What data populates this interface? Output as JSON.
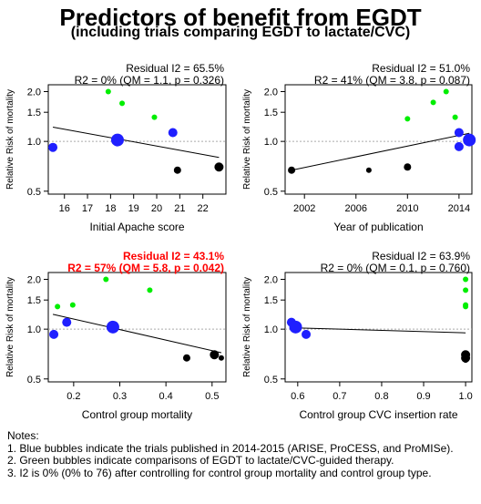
{
  "title": "Predictors of benefit from EGDT",
  "subtitle": "(including trials comparing EGDT to lactate/CVC)",
  "colors": {
    "blue_bubble": "#1f1fff",
    "green_bubble": "#00ee00",
    "black_bubble": "#000000",
    "highlight_text": "#ff0000",
    "reference_line": "#aaaaaa"
  },
  "chart_data": [
    {
      "type": "scatter",
      "panel": "top-left",
      "xlabel": "Initial Apache score",
      "ylabel": "Relative Risk of mortality",
      "stat_line1": "Residual I2 = 65.5%",
      "stat_line2": "R2 = 0% (QM = 1.1, p = 0.326)",
      "highlight": false,
      "y_scale": "log",
      "xlim": [
        15.3,
        23.0
      ],
      "ylim": [
        0.48,
        2.2
      ],
      "xticks": [
        "16",
        "17",
        "18",
        "19",
        "20",
        "21",
        "22"
      ],
      "xtick_values": [
        16,
        17,
        18,
        19,
        20,
        21,
        22
      ],
      "yticks": [
        "0.5",
        "1.0",
        "1.5",
        "2.0"
      ],
      "ytick_values": [
        0.5,
        1.0,
        1.5,
        2.0
      ],
      "reference_y": 1.0,
      "regression": {
        "x": [
          15.5,
          22.7
        ],
        "y": [
          1.22,
          0.8
        ]
      },
      "points": [
        {
          "x": 15.5,
          "y": 0.92,
          "group": "blue",
          "size": 5
        },
        {
          "x": 18.3,
          "y": 1.02,
          "group": "blue",
          "size": 7
        },
        {
          "x": 20.7,
          "y": 1.13,
          "group": "blue",
          "size": 5
        },
        {
          "x": 17.9,
          "y": 2.0,
          "group": "green",
          "size": 3
        },
        {
          "x": 18.5,
          "y": 1.7,
          "group": "green",
          "size": 3
        },
        {
          "x": 19.9,
          "y": 1.4,
          "group": "green",
          "size": 3
        },
        {
          "x": 20.9,
          "y": 0.67,
          "group": "black",
          "size": 4
        },
        {
          "x": 22.7,
          "y": 0.7,
          "group": "black",
          "size": 5
        }
      ]
    },
    {
      "type": "scatter",
      "panel": "top-right",
      "xlabel": "Year of publication",
      "ylabel": "Relative Risk of mortality",
      "stat_line1": "Residual I2 = 51.0%",
      "stat_line2": "R2 = 41% (QM = 3.8, p = 0.087)",
      "highlight": false,
      "y_scale": "log",
      "xlim": [
        2000.5,
        2015.0
      ],
      "ylim": [
        0.48,
        2.2
      ],
      "xticks": [
        "2002",
        "2006",
        "2010",
        "2014"
      ],
      "xtick_values": [
        2002,
        2006,
        2010,
        2014
      ],
      "yticks": [
        "0.5",
        "1.0",
        "1.5",
        "2.0"
      ],
      "ytick_values": [
        0.5,
        1.0,
        1.5,
        2.0
      ],
      "reference_y": 1.0,
      "regression": {
        "x": [
          2001,
          2014.8
        ],
        "y": [
          0.67,
          1.12
        ]
      },
      "points": [
        {
          "x": 2001,
          "y": 0.67,
          "group": "black",
          "size": 4
        },
        {
          "x": 2007,
          "y": 0.67,
          "group": "black",
          "size": 3
        },
        {
          "x": 2010,
          "y": 0.7,
          "group": "black",
          "size": 4
        },
        {
          "x": 2010,
          "y": 1.37,
          "group": "green",
          "size": 3
        },
        {
          "x": 2012,
          "y": 1.72,
          "group": "green",
          "size": 3
        },
        {
          "x": 2013,
          "y": 2.0,
          "group": "green",
          "size": 3
        },
        {
          "x": 2013.7,
          "y": 1.4,
          "group": "green",
          "size": 3
        },
        {
          "x": 2014,
          "y": 1.13,
          "group": "blue",
          "size": 5
        },
        {
          "x": 2014,
          "y": 0.93,
          "group": "blue",
          "size": 5
        },
        {
          "x": 2014.8,
          "y": 1.02,
          "group": "blue",
          "size": 7
        }
      ]
    },
    {
      "type": "scatter",
      "panel": "bottom-left",
      "xlabel": "Control group mortality",
      "ylabel": "Relative Risk of mortality",
      "stat_line1": "Residual I2 = 43.1%",
      "stat_line2": "R2 = 57% (QM = 5.8, p = 0.042)",
      "highlight": true,
      "y_scale": "log",
      "xlim": [
        0.145,
        0.53
      ],
      "ylim": [
        0.48,
        2.2
      ],
      "xticks": [
        "0.2",
        "0.3",
        "0.4",
        "0.5"
      ],
      "xtick_values": [
        0.2,
        0.3,
        0.4,
        0.5
      ],
      "yticks": [
        "0.5",
        "1.0",
        "1.5",
        "2.0"
      ],
      "ytick_values": [
        0.5,
        1.0,
        1.5,
        2.0
      ],
      "reference_y": 1.0,
      "regression": {
        "x": [
          0.155,
          0.52
        ],
        "y": [
          1.23,
          0.72
        ]
      },
      "points": [
        {
          "x": 0.157,
          "y": 0.93,
          "group": "blue",
          "size": 5
        },
        {
          "x": 0.185,
          "y": 1.1,
          "group": "blue",
          "size": 5
        },
        {
          "x": 0.285,
          "y": 1.03,
          "group": "blue",
          "size": 7
        },
        {
          "x": 0.165,
          "y": 1.37,
          "group": "green",
          "size": 3
        },
        {
          "x": 0.198,
          "y": 1.4,
          "group": "green",
          "size": 3
        },
        {
          "x": 0.27,
          "y": 2.0,
          "group": "green",
          "size": 3
        },
        {
          "x": 0.365,
          "y": 1.72,
          "group": "green",
          "size": 3
        },
        {
          "x": 0.445,
          "y": 0.67,
          "group": "black",
          "size": 4
        },
        {
          "x": 0.505,
          "y": 0.7,
          "group": "black",
          "size": 5
        },
        {
          "x": 0.52,
          "y": 0.67,
          "group": "black",
          "size": 3
        }
      ]
    },
    {
      "type": "scatter",
      "panel": "bottom-right",
      "xlabel": "Control group CVC insertion rate",
      "ylabel": "Relative Risk of mortality",
      "stat_line1": "Residual I2 = 63.9%",
      "stat_line2": "R2 = 0% (QM = 0.1, p = 0.760)",
      "highlight": false,
      "y_scale": "log",
      "xlim": [
        0.57,
        1.015
      ],
      "ylim": [
        0.48,
        2.2
      ],
      "xticks": [
        "0.6",
        "0.7",
        "0.8",
        "0.9",
        "1.0"
      ],
      "xtick_values": [
        0.6,
        0.7,
        0.8,
        0.9,
        1.0
      ],
      "yticks": [
        "0.5",
        "1.0",
        "1.5",
        "2.0"
      ],
      "ytick_values": [
        0.5,
        1.0,
        1.5,
        2.0
      ],
      "reference_y": 1.0,
      "regression": {
        "x": [
          0.585,
          1.0
        ],
        "y": [
          1.02,
          0.95
        ]
      },
      "points": [
        {
          "x": 0.585,
          "y": 1.1,
          "group": "blue",
          "size": 5
        },
        {
          "x": 0.595,
          "y": 1.03,
          "group": "blue",
          "size": 7
        },
        {
          "x": 0.62,
          "y": 0.93,
          "group": "blue",
          "size": 5
        },
        {
          "x": 1.0,
          "y": 2.0,
          "group": "green",
          "size": 3
        },
        {
          "x": 1.0,
          "y": 1.72,
          "group": "green",
          "size": 3
        },
        {
          "x": 1.0,
          "y": 1.4,
          "group": "green",
          "size": 3
        },
        {
          "x": 1.0,
          "y": 1.37,
          "group": "green",
          "size": 3
        },
        {
          "x": 1.0,
          "y": 0.7,
          "group": "black",
          "size": 5
        },
        {
          "x": 1.0,
          "y": 0.67,
          "group": "black",
          "size": 5
        },
        {
          "x": 1.0,
          "y": 0.65,
          "group": "black",
          "size": 3
        }
      ]
    }
  ],
  "notes": {
    "heading": "Notes:",
    "lines": [
      "1. Blue bubbles indicate the trials published in 2014-2015 (ARISE, ProCESS, and ProMISe).",
      "2. Green bubbles indicate comparisons of EGDT to lactate/CVC-guided therapy.",
      "3. I2 is 0% (0% to 76) after controlling for control group mortality and control group type."
    ]
  }
}
